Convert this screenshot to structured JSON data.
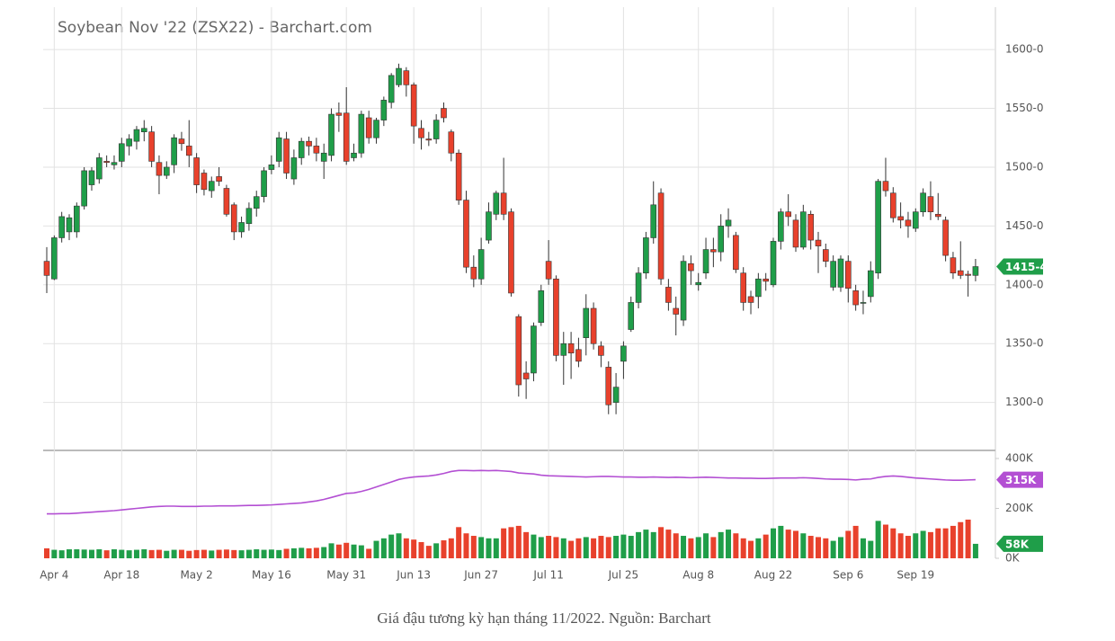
{
  "chart_data": {
    "type": "candlestick",
    "title": "Soybean Nov '22 (ZSX22) - Barchart.com",
    "categories": [
      null,
      "Apr 4",
      null,
      null,
      null,
      null,
      null,
      null,
      null,
      null,
      "Apr 18",
      null,
      null,
      null,
      null,
      null,
      null,
      null,
      null,
      null,
      "May 2",
      null,
      null,
      null,
      null,
      null,
      null,
      null,
      null,
      null,
      "May 16",
      null,
      null,
      null,
      null,
      null,
      null,
      null,
      null,
      null,
      "May 31",
      null,
      null,
      null,
      null,
      null,
      null,
      null,
      null,
      "Jun 13",
      null,
      null,
      null,
      null,
      null,
      null,
      null,
      null,
      "Jun 27",
      null,
      null,
      null,
      null,
      null,
      null,
      null,
      null,
      "Jul 11",
      null,
      null,
      null,
      null,
      null,
      null,
      null,
      null,
      null,
      "Jul 25",
      null,
      null,
      null,
      null,
      null,
      null,
      null,
      null,
      null,
      "Aug 8",
      null,
      null,
      null,
      null,
      null,
      null,
      null,
      null,
      null,
      "Aug 22",
      null,
      null,
      null,
      null,
      null,
      null,
      null,
      null,
      null,
      "Sep 6",
      null,
      null,
      null,
      null,
      null,
      null,
      null,
      null,
      "Sep 19",
      null,
      null,
      null,
      null,
      null,
      null,
      null,
      null
    ],
    "open": [
      1420,
      1405,
      1440,
      1445,
      1445,
      1467,
      1485,
      1490,
      1505,
      1502,
      1505,
      1518,
      1522,
      1530,
      1530,
      1504,
      1493,
      1502,
      1524,
      1518,
      1508,
      1495,
      1480,
      1492,
      1482,
      1468,
      1445,
      1452,
      1465,
      1475,
      1498,
      1505,
      1524,
      1490,
      1508,
      1522,
      1518,
      1505,
      1510,
      1546,
      1546,
      1508,
      1512,
      1542,
      1525,
      1540,
      1555,
      1570,
      1582,
      1570,
      1533,
      1524,
      1524,
      1550,
      1530,
      1512,
      1472,
      1415,
      1405,
      1438,
      1460,
      1478,
      1462,
      1373,
      1325,
      1325,
      1368,
      1420,
      1405,
      1340,
      1350,
      1345,
      1355,
      1380,
      1348,
      1330,
      1300,
      1335,
      1362,
      1385,
      1410,
      1440,
      1478,
      1398,
      1380,
      1370,
      1418,
      1400,
      1410,
      1430,
      1428,
      1450,
      1442,
      1410,
      1390,
      1390,
      1405,
      1400,
      1437,
      1462,
      1455,
      1432,
      1460,
      1438,
      1430,
      1398,
      1398,
      1420,
      1395,
      1385,
      1390,
      1410,
      1488,
      1478,
      1458,
      1455,
      1448,
      1462,
      1475,
      1460,
      1455,
      1423,
      1412,
      1409,
      1408
    ],
    "high": [
      1432,
      1442,
      1462,
      1460,
      1470,
      1500,
      1500,
      1512,
      1510,
      1510,
      1525,
      1528,
      1535,
      1540,
      1535,
      1510,
      1505,
      1528,
      1530,
      1540,
      1512,
      1498,
      1492,
      1500,
      1485,
      1470,
      1458,
      1470,
      1480,
      1500,
      1510,
      1530,
      1530,
      1515,
      1525,
      1526,
      1525,
      1520,
      1550,
      1555,
      1568,
      1520,
      1548,
      1548,
      1542,
      1560,
      1580,
      1588,
      1585,
      1572,
      1540,
      1530,
      1545,
      1555,
      1532,
      1515,
      1480,
      1425,
      1440,
      1470,
      1480,
      1508,
      1465,
      1375,
      1335,
      1368,
      1400,
      1438,
      1408,
      1360,
      1360,
      1355,
      1392,
      1385,
      1352,
      1335,
      1325,
      1352,
      1390,
      1415,
      1445,
      1488,
      1482,
      1405,
      1390,
      1425,
      1425,
      1410,
      1440,
      1440,
      1460,
      1465,
      1445,
      1415,
      1395,
      1410,
      1410,
      1440,
      1465,
      1477,
      1460,
      1468,
      1463,
      1445,
      1435,
      1425,
      1425,
      1425,
      1400,
      1395,
      1420,
      1490,
      1508,
      1483,
      1470,
      1462,
      1465,
      1482,
      1488,
      1478,
      1458,
      1428,
      1437,
      1412,
      1422
    ],
    "low": [
      1393,
      1404,
      1436,
      1438,
      1440,
      1464,
      1480,
      1486,
      1500,
      1498,
      1500,
      1510,
      1515,
      1522,
      1500,
      1477,
      1490,
      1495,
      1514,
      1500,
      1478,
      1476,
      1474,
      1484,
      1458,
      1438,
      1440,
      1446,
      1458,
      1470,
      1494,
      1500,
      1490,
      1485,
      1502,
      1510,
      1505,
      1490,
      1505,
      1530,
      1502,
      1505,
      1508,
      1520,
      1520,
      1535,
      1550,
      1568,
      1560,
      1520,
      1515,
      1518,
      1520,
      1538,
      1505,
      1468,
      1410,
      1398,
      1400,
      1435,
      1455,
      1455,
      1390,
      1305,
      1303,
      1318,
      1365,
      1400,
      1335,
      1315,
      1320,
      1330,
      1340,
      1345,
      1330,
      1290,
      1290,
      1320,
      1360,
      1380,
      1405,
      1435,
      1400,
      1378,
      1357,
      1365,
      1400,
      1395,
      1405,
      1415,
      1420,
      1440,
      1410,
      1378,
      1375,
      1380,
      1395,
      1398,
      1430,
      1450,
      1428,
      1430,
      1430,
      1410,
      1415,
      1395,
      1394,
      1385,
      1378,
      1375,
      1385,
      1405,
      1475,
      1453,
      1448,
      1440,
      1445,
      1458,
      1455,
      1455,
      1420,
      1405,
      1405,
      1390,
      1403
    ],
    "close": [
      1408,
      1440,
      1458,
      1457,
      1467,
      1497,
      1497,
      1508,
      1504,
      1504,
      1520,
      1524,
      1532,
      1533,
      1505,
      1493,
      1500,
      1525,
      1520,
      1510,
      1485,
      1481,
      1488,
      1488,
      1460,
      1445,
      1453,
      1465,
      1475,
      1497,
      1502,
      1525,
      1495,
      1508,
      1522,
      1518,
      1512,
      1512,
      1545,
      1544,
      1505,
      1512,
      1545,
      1525,
      1540,
      1557,
      1578,
      1584,
      1570,
      1535,
      1525,
      1523,
      1540,
      1542,
      1512,
      1472,
      1415,
      1405,
      1430,
      1462,
      1478,
      1460,
      1393,
      1315,
      1320,
      1365,
      1395,
      1405,
      1340,
      1350,
      1342,
      1335,
      1380,
      1350,
      1340,
      1298,
      1313,
      1348,
      1385,
      1410,
      1440,
      1468,
      1405,
      1385,
      1375,
      1420,
      1412,
      1402,
      1430,
      1428,
      1450,
      1455,
      1413,
      1385,
      1385,
      1405,
      1403,
      1437,
      1462,
      1458,
      1432,
      1462,
      1438,
      1433,
      1420,
      1420,
      1422,
      1397,
      1383,
      1385,
      1412,
      1488,
      1480,
      1457,
      1455,
      1450,
      1462,
      1478,
      1462,
      1458,
      1425,
      1410,
      1408,
      1408,
      1415.5
    ],
    "up_color": "#1f9e49",
    "down_color": "#e8412c",
    "ylim": [
      1260,
      1636
    ],
    "yticks": [
      {
        "value": 1300,
        "label": "1300-0"
      },
      {
        "value": 1350,
        "label": "1350-0"
      },
      {
        "value": 1400,
        "label": "1400-0"
      },
      {
        "value": 1450,
        "label": "1450-0"
      },
      {
        "value": 1500,
        "label": "1500-0"
      },
      {
        "value": 1550,
        "label": "1550-0"
      },
      {
        "value": 1600,
        "label": "1600-0"
      }
    ],
    "last_price": {
      "value": 1415.5,
      "label": "1415-4"
    },
    "grid": true,
    "volume_panel": {
      "type": "bar",
      "ylim": [
        0,
        400000
      ],
      "yticks": [
        {
          "value": 0,
          "label": "0K"
        },
        {
          "value": 200000,
          "label": "200K"
        },
        {
          "value": 400000,
          "label": "400K"
        }
      ],
      "volume": [
        40000,
        34000,
        32000,
        36000,
        36000,
        35000,
        34000,
        36000,
        32000,
        36000,
        34000,
        32000,
        34000,
        36000,
        33000,
        34000,
        30000,
        34000,
        34000,
        30000,
        33000,
        34000,
        31000,
        34000,
        35000,
        33000,
        32000,
        34000,
        36000,
        34000,
        35000,
        33000,
        38000,
        40000,
        42000,
        40000,
        42000,
        45000,
        60000,
        55000,
        62000,
        55000,
        52000,
        38000,
        70000,
        80000,
        95000,
        100000,
        80000,
        75000,
        65000,
        50000,
        60000,
        72000,
        80000,
        125000,
        100000,
        90000,
        85000,
        80000,
        80000,
        120000,
        125000,
        130000,
        105000,
        95000,
        85000,
        90000,
        85000,
        80000,
        70000,
        80000,
        85000,
        80000,
        90000,
        85000,
        90000,
        95000,
        90000,
        105000,
        115000,
        105000,
        125000,
        115000,
        100000,
        90000,
        80000,
        85000,
        100000,
        85000,
        105000,
        115000,
        100000,
        80000,
        70000,
        80000,
        95000,
        120000,
        130000,
        115000,
        110000,
        100000,
        90000,
        85000,
        80000,
        70000,
        85000,
        110000,
        130000,
        80000,
        70000,
        150000,
        135000,
        120000,
        100000,
        90000,
        100000,
        110000,
        105000,
        120000,
        120000,
        130000,
        145000,
        155000,
        58000
      ],
      "open_interest": [
        178000,
        178000,
        179000,
        179000,
        181000,
        183000,
        185000,
        187000,
        189000,
        191000,
        194000,
        197000,
        200000,
        203000,
        206000,
        208000,
        209000,
        209000,
        208000,
        208000,
        208000,
        209000,
        209000,
        210000,
        210000,
        210000,
        211000,
        212000,
        212000,
        213000,
        214000,
        216000,
        218000,
        220000,
        222000,
        226000,
        230000,
        236000,
        244000,
        252000,
        260000,
        262000,
        268000,
        276000,
        286000,
        296000,
        306000,
        316000,
        322000,
        326000,
        328000,
        330000,
        334000,
        340000,
        348000,
        352000,
        352000,
        351000,
        352000,
        351000,
        352000,
        350000,
        348000,
        342000,
        340000,
        338000,
        333000,
        331000,
        330000,
        329000,
        328000,
        327000,
        326000,
        327000,
        328000,
        328000,
        327000,
        326000,
        326000,
        325000,
        325000,
        326000,
        325000,
        324000,
        325000,
        324000,
        323000,
        324000,
        325000,
        324000,
        323000,
        322000,
        322000,
        321000,
        321000,
        320000,
        320000,
        321000,
        322000,
        322000,
        322000,
        323000,
        322000,
        320000,
        318000,
        317000,
        317000,
        316000,
        314000,
        317000,
        318000,
        324000,
        328000,
        330000,
        328000,
        325000,
        322000,
        320000,
        318000,
        316000,
        314000,
        313000,
        313000,
        314000,
        315000
      ],
      "oi_color": "#b34fd3",
      "last_volume": {
        "value": 58000,
        "label": "58K"
      },
      "last_open_interest": {
        "value": 315000,
        "label": "315K"
      }
    }
  },
  "caption": "Giá đậu tương kỳ hạn tháng 11/2022. Nguồn: Barchart"
}
